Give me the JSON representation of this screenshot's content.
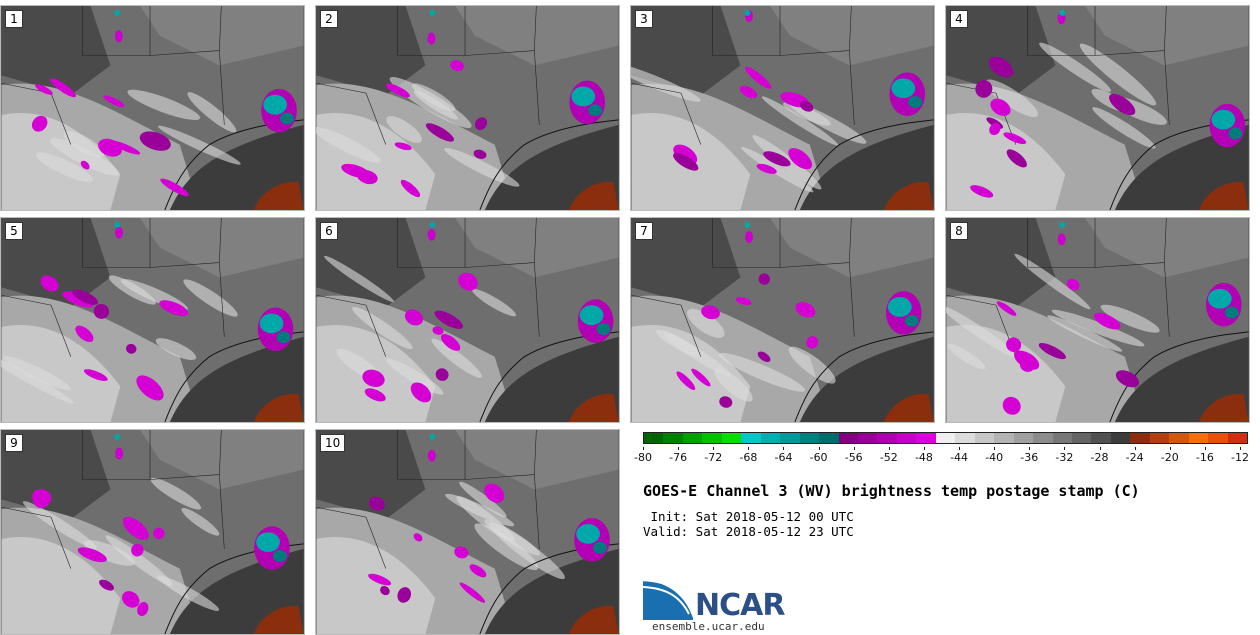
{
  "panels": [
    {
      "label": "1"
    },
    {
      "label": "2"
    },
    {
      "label": "3"
    },
    {
      "label": "4"
    },
    {
      "label": "5"
    },
    {
      "label": "6"
    },
    {
      "label": "7"
    },
    {
      "label": "8"
    },
    {
      "label": "9"
    },
    {
      "label": "10"
    }
  ],
  "colorbar": {
    "colors": [
      "#006400",
      "#008000",
      "#00a000",
      "#00c000",
      "#00e000",
      "#00c8c8",
      "#00b0b0",
      "#009898",
      "#008080",
      "#006c6c",
      "#800080",
      "#960096",
      "#ad00ad",
      "#c400c4",
      "#dc00dc",
      "#f0f0f0",
      "#dcdcdc",
      "#c8c8c8",
      "#b4b4b4",
      "#a0a0a0",
      "#8c8c8c",
      "#787878",
      "#646464",
      "#505050",
      "#3c3c3c",
      "#8b2e0e",
      "#b04010",
      "#d05810",
      "#f07010",
      "#e85010",
      "#d03010"
    ],
    "ticks": [
      "-80",
      "-76",
      "-72",
      "-68",
      "-64",
      "-60",
      "-56",
      "-52",
      "-48",
      "-44",
      "-40",
      "-36",
      "-32",
      "-28",
      "-24",
      "-20",
      "-16",
      "-12"
    ]
  },
  "title": "GOES-E Channel 3 (WV) brightness temp postage stamp (C)",
  "init": " Init: Sat 2018-05-12 00 UTC",
  "valid": "Valid: Sat 2018-05-12 23 UTC",
  "logo": {
    "text": "NCAR",
    "site": "ensemble.ucar.edu"
  }
}
